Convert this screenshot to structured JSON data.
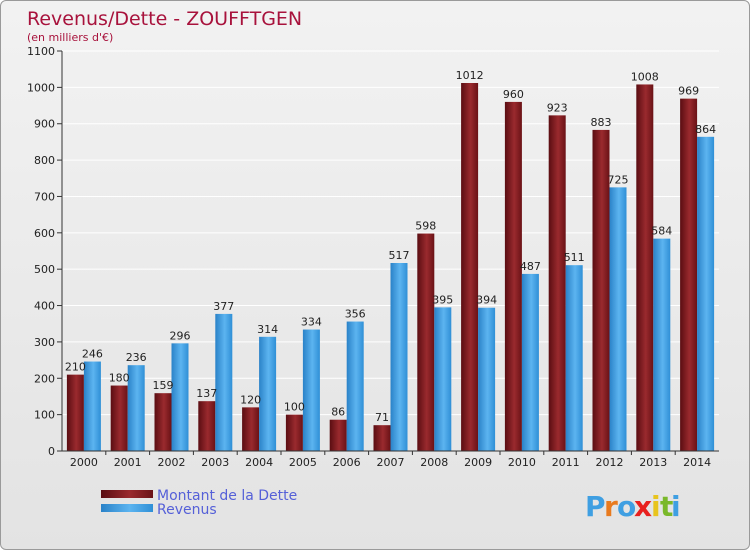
{
  "chart_data": {
    "type": "bar",
    "title": "Revenus/Dette - ZOUFFTGEN",
    "subtitle": "(en milliers d'€)",
    "categories": [
      "2000",
      "2001",
      "2002",
      "2003",
      "2004",
      "2005",
      "2006",
      "2007",
      "2008",
      "2009",
      "2010",
      "2011",
      "2012",
      "2013",
      "2014"
    ],
    "series": [
      {
        "name": "Montant de la Dette",
        "color": "#7a1a1e",
        "values": [
          210,
          180,
          159,
          137,
          120,
          100,
          86,
          71,
          598,
          1012,
          960,
          923,
          883,
          1008,
          969
        ]
      },
      {
        "name": "Revenus",
        "color": "#3f9fe2",
        "values": [
          246,
          236,
          296,
          377,
          314,
          334,
          356,
          517,
          395,
          394,
          487,
          511,
          725,
          584,
          864
        ]
      }
    ],
    "ylim": [
      0,
      1100
    ],
    "yticks": [
      0,
      100,
      200,
      300,
      400,
      500,
      600,
      700,
      800,
      900,
      1000,
      1100
    ],
    "grid": true,
    "legend": "bottom-left"
  },
  "logo": {
    "text": "Proxiti",
    "letters": [
      "P",
      "r",
      "o",
      "x",
      "i",
      "t",
      "i"
    ],
    "colors": [
      "#3f9fe2",
      "#e87a1e",
      "#3f9fe2",
      "#e8201e",
      "#e8c41e",
      "#7ab82a",
      "#3f9fe2"
    ]
  }
}
